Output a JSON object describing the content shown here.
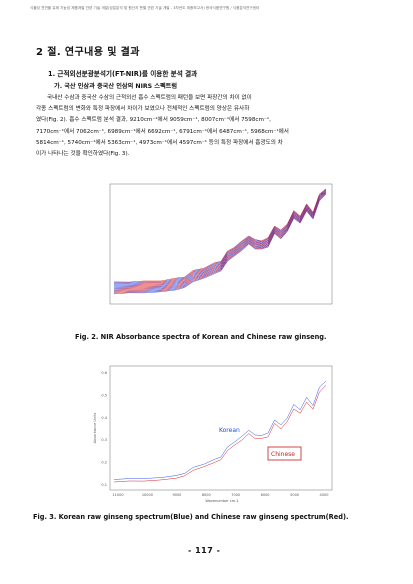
{
  "header": "식물성 천연물 유래 기능성 제품개발 관련 기술 개발(성분분석 및 원산지 판별 관련 기술 개발 - 3차년도 최종보고서) 한국식품연구원 / 식품분석연구센터",
  "section": {
    "title": "2 절. 연구내용 및 결과",
    "subtitle": "1. 근적외선분광분석기(FT-NIR)를 이용한 분석 결과",
    "subsub": "가. 국산 인삼과 중국산 인삼의 NIRS 스펙트럼"
  },
  "paragraph": [
    "국내산 수삼과 중국산 수삼의 근적외선 흡수 스펙트럼의 패턴을 보면 파장간의 차이 없이",
    "각종 스펙트럼의 변화와 특정 파장에서 차이가 보였으나 전체적인 스펙트럼의 양상은 유사하",
    "였다(Fig. 2). 흡수 스펙트럼 분석 결과, 9210cm⁻¹에서 9059cm⁻¹, 8007cm⁻¹에서 7598cm⁻¹,",
    "7170cm⁻¹에서 7062cm⁻¹, 6989cm⁻¹에서 6692cm⁻¹, 6791cm⁻¹에서 6487cm⁻¹, 5968cm⁻¹에서",
    "5814cm⁻¹, 5740cm⁻¹에서 5363cm⁻¹, 4973cm⁻¹에서 4597cm⁻¹ 등의 특정 파장에서 흡광도의 차",
    "이가 나타나는 것을 확인하였다(Fig. 3)."
  ],
  "figure2": {
    "caption": "Fig. 2. NIR Absorbance spectra of Korean and Chinese raw ginseng."
  },
  "figure3": {
    "caption": "Fig. 3. Korean raw ginseng spectrum(Blue) and Chinese raw ginseng spectrum(Red).",
    "legend_korean": "Korean",
    "legend_chinese": "Chinese",
    "xlabel": "Wavenumber cm-1",
    "ylabel": "Absorbance Units",
    "xticks": [
      "11000",
      "10000",
      "9000",
      "8000",
      "7000",
      "6000",
      "5000",
      "4000"
    ],
    "yticks": [
      "0.1",
      "0.2",
      "0.3",
      "0.4",
      "0.5",
      "0.6"
    ]
  },
  "page_number": "- 117 -",
  "colors": {
    "korean": "#3355ee",
    "chinese": "#dd2222",
    "legend_korean_text": "#1a4fd0",
    "legend_chinese_text": "#cc1a1a"
  }
}
